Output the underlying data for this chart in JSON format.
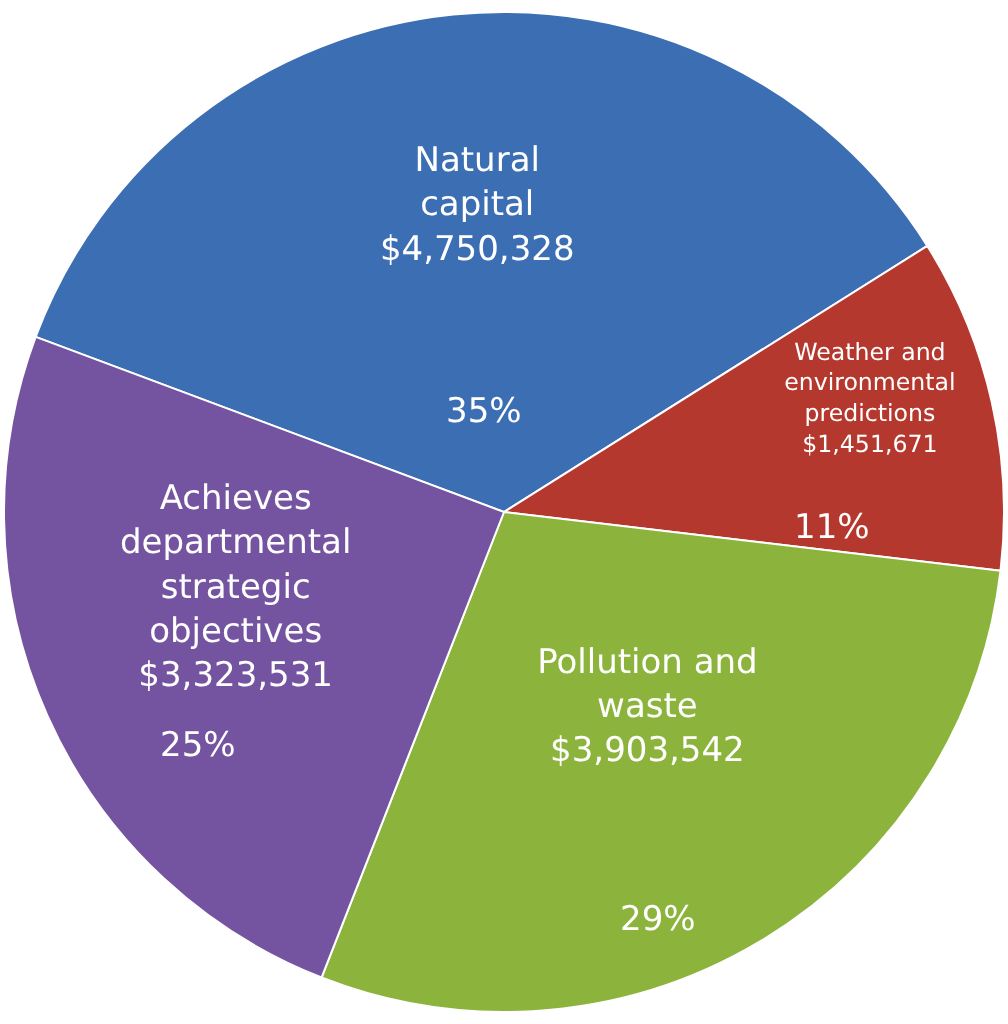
{
  "chart_data": {
    "type": "pie",
    "categories": [
      "Natural capital",
      "Weather and environmental predictions",
      "Pollution and waste",
      "Achieves departmental strategic objectives"
    ],
    "values": [
      4750328,
      1451671,
      3903542,
      3323531
    ],
    "value_labels": [
      "$4,750,328",
      "$1,451,671",
      "$3,903,542",
      "$3,323,531"
    ],
    "annotations": [
      "35%",
      "11%",
      "29%",
      "25%"
    ],
    "colors": [
      "#3c6eb4",
      "#b5382f",
      "#8cb43c",
      "#7454a0"
    ],
    "legend": false
  }
}
